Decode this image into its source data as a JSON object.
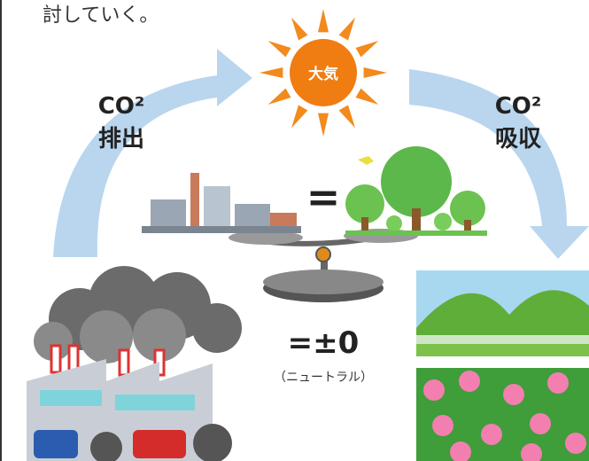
{
  "intro_text": "討していく。",
  "sun": {
    "label": "大気"
  },
  "left_arrow": {
    "line1": "CO²",
    "line2": "排出"
  },
  "right_arrow": {
    "line1": "CO²",
    "line2": "吸収"
  },
  "balance": {
    "equals": "=",
    "result": "=±0",
    "note": "（ニュートラル）"
  }
}
